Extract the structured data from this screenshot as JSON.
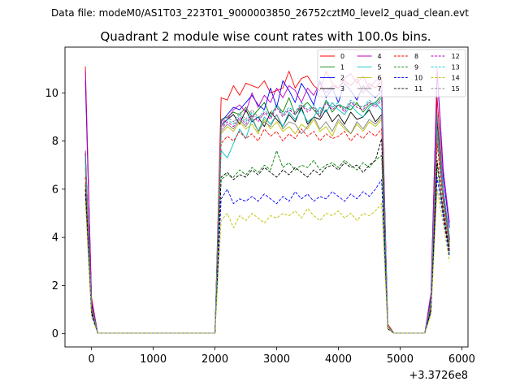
{
  "figure": {
    "suptitle": "Data file: modeM0/AS1T03_223T01_9000003850_26752cztM0_level2_quad_clean.evt"
  },
  "chart_data": {
    "type": "line",
    "title": "Quadrant 2 module wise count rates with 100.0s bins.",
    "xlabel": "",
    "ylabel": "",
    "x_offset_label": "+3.3726e8",
    "xlim": [
      -430,
      6100
    ],
    "ylim": [
      -0.55,
      11.9
    ],
    "xticks": [
      0,
      1000,
      2000,
      3000,
      4000,
      5000,
      6000
    ],
    "xtick_labels": [
      "0",
      "1000",
      "2000",
      "3000",
      "4000",
      "5000",
      "6000"
    ],
    "yticks": [
      0,
      2,
      4,
      6,
      8,
      10
    ],
    "ytick_labels": [
      "0",
      "2",
      "4",
      "6",
      "8",
      "10"
    ],
    "grid": false,
    "legend_placement": "upper-right",
    "legend_columns": 4,
    "x": [
      -100,
      0,
      100,
      200,
      300,
      400,
      500,
      600,
      700,
      800,
      900,
      1000,
      1100,
      1200,
      1300,
      1400,
      1500,
      1600,
      1700,
      1800,
      1900,
      2000,
      2100,
      2200,
      2300,
      2400,
      2500,
      2600,
      2700,
      2800,
      2900,
      3000,
      3100,
      3200,
      3300,
      3400,
      3500,
      3600,
      3700,
      3800,
      3900,
      4000,
      4100,
      4200,
      4300,
      4400,
      4500,
      4600,
      4700,
      4800,
      4900,
      5000,
      5100,
      5200,
      5300,
      5400,
      5500,
      5600,
      5700,
      5800
    ],
    "series": [
      {
        "name": "0",
        "color": "#ff0000",
        "dash": "solid",
        "values": [
          11.1,
          1.5,
          0.02,
          0.02,
          0.02,
          0.02,
          0.02,
          0.02,
          0.02,
          0.02,
          0.02,
          0.02,
          0.02,
          0.02,
          0.02,
          0.02,
          0.02,
          0.02,
          0.02,
          0.02,
          0.02,
          0.02,
          9.8,
          9.7,
          10.3,
          9.9,
          10.4,
          10.3,
          10.2,
          10.5,
          10.0,
          10.1,
          10.2,
          10.9,
          10.2,
          10.6,
          10.7,
          10.3,
          10.1,
          10.9,
          10.4,
          10.2,
          10.5,
          10.3,
          10.6,
          10.0,
          10.4,
          10.2,
          10.5,
          0.4,
          0.02,
          0.02,
          0.02,
          0.02,
          0.02,
          0.02,
          1.5,
          9.8,
          6.0,
          4.0
        ]
      },
      {
        "name": "1",
        "color": "#008000",
        "dash": "solid",
        "values": [
          7.2,
          1.4,
          0.02,
          0.02,
          0.02,
          0.02,
          0.02,
          0.02,
          0.02,
          0.02,
          0.02,
          0.02,
          0.02,
          0.02,
          0.02,
          0.02,
          0.02,
          0.02,
          0.02,
          0.02,
          0.02,
          0.02,
          8.9,
          9.0,
          9.2,
          9.1,
          9.4,
          9.0,
          9.3,
          9.6,
          9.0,
          9.5,
          9.2,
          9.8,
          9.1,
          9.4,
          9.6,
          9.3,
          9.0,
          9.7,
          9.2,
          9.5,
          9.4,
          9.3,
          9.6,
          9.2,
          9.5,
          9.6,
          9.9,
          0.3,
          0.02,
          0.02,
          0.02,
          0.02,
          0.02,
          0.02,
          1.4,
          8.8,
          5.8,
          3.8
        ]
      },
      {
        "name": "2",
        "color": "#0000ff",
        "dash": "solid",
        "values": [
          10.5,
          1.3,
          0.02,
          0.02,
          0.02,
          0.02,
          0.02,
          0.02,
          0.02,
          0.02,
          0.02,
          0.02,
          0.02,
          0.02,
          0.02,
          0.02,
          0.02,
          0.02,
          0.02,
          0.02,
          0.02,
          0.02,
          8.8,
          9.1,
          9.4,
          9.3,
          9.6,
          9.9,
          9.5,
          9.3,
          10.2,
          9.4,
          10.5,
          10.1,
          9.6,
          10.4,
          10.0,
          9.5,
          10.5,
          9.8,
          10.2,
          9.6,
          10.4,
          10.1,
          9.7,
          10.3,
          10.0,
          9.8,
          10.1,
          0.3,
          0.02,
          0.02,
          0.02,
          0.02,
          0.02,
          0.02,
          1.6,
          10.9,
          6.5,
          4.4
        ]
      },
      {
        "name": "3",
        "color": "#000000",
        "dash": "solid",
        "values": [
          7.5,
          1.2,
          0.02,
          0.02,
          0.02,
          0.02,
          0.02,
          0.02,
          0.02,
          0.02,
          0.02,
          0.02,
          0.02,
          0.02,
          0.02,
          0.02,
          0.02,
          0.02,
          0.02,
          0.02,
          0.02,
          0.02,
          8.6,
          8.9,
          9.1,
          8.7,
          9.3,
          8.8,
          9.0,
          8.6,
          9.2,
          8.9,
          8.6,
          9.1,
          8.8,
          9.4,
          8.7,
          9.0,
          8.9,
          9.3,
          8.8,
          9.1,
          8.7,
          9.2,
          8.9,
          9.0,
          9.3,
          8.8,
          9.1,
          0.3,
          0.02,
          0.02,
          0.02,
          0.02,
          0.02,
          0.02,
          1.3,
          8.9,
          5.9,
          3.9
        ]
      },
      {
        "name": "4",
        "color": "#bf00bf",
        "dash": "solid",
        "values": [
          10.9,
          1.4,
          0.02,
          0.02,
          0.02,
          0.02,
          0.02,
          0.02,
          0.02,
          0.02,
          0.02,
          0.02,
          0.02,
          0.02,
          0.02,
          0.02,
          0.02,
          0.02,
          0.02,
          0.02,
          0.02,
          0.02,
          8.7,
          8.9,
          9.3,
          9.5,
          9.2,
          10.0,
          9.4,
          9.9,
          9.6,
          10.2,
          9.8,
          10.3,
          10.1,
          9.6,
          10.2,
          9.9,
          10.4,
          10.0,
          10.3,
          10.2,
          10.6,
          10.8,
          10.4,
          10.7,
          10.2,
          10.5,
          10.6,
          0.3,
          0.02,
          0.02,
          0.02,
          0.02,
          0.02,
          0.02,
          1.7,
          11.0,
          6.8,
          4.6
        ]
      },
      {
        "name": "5",
        "color": "#00bfbf",
        "dash": "solid",
        "values": [
          7.0,
          1.1,
          0.02,
          0.02,
          0.02,
          0.02,
          0.02,
          0.02,
          0.02,
          0.02,
          0.02,
          0.02,
          0.02,
          0.02,
          0.02,
          0.02,
          0.02,
          0.02,
          0.02,
          0.02,
          0.02,
          0.02,
          7.6,
          7.3,
          7.9,
          8.5,
          8.1,
          8.9,
          8.4,
          9.0,
          8.7,
          9.1,
          8.6,
          9.2,
          8.9,
          9.3,
          8.8,
          9.0,
          9.4,
          9.2,
          9.6,
          9.3,
          9.1,
          9.5,
          9.2,
          9.0,
          9.4,
          9.6,
          9.3,
          0.3,
          0.02,
          0.02,
          0.02,
          0.02,
          0.02,
          0.02,
          1.2,
          8.5,
          5.6,
          3.7
        ]
      },
      {
        "name": "6",
        "color": "#bfbf00",
        "dash": "solid",
        "values": [
          6.8,
          1.0,
          0.02,
          0.02,
          0.02,
          0.02,
          0.02,
          0.02,
          0.02,
          0.02,
          0.02,
          0.02,
          0.02,
          0.02,
          0.02,
          0.02,
          0.02,
          0.02,
          0.02,
          0.02,
          0.02,
          0.02,
          8.3,
          8.6,
          8.4,
          8.8,
          8.5,
          8.7,
          8.3,
          8.9,
          8.5,
          8.8,
          8.4,
          8.6,
          8.3,
          8.7,
          8.5,
          8.9,
          8.4,
          8.6,
          8.2,
          8.8,
          8.5,
          8.3,
          8.7,
          8.4,
          8.8,
          8.6,
          8.9,
          0.3,
          0.02,
          0.02,
          0.02,
          0.02,
          0.02,
          0.02,
          1.2,
          8.2,
          5.5,
          3.6
        ]
      },
      {
        "name": "7",
        "color": "#808080",
        "dash": "solid",
        "values": [
          6.9,
          1.0,
          0.02,
          0.02,
          0.02,
          0.02,
          0.02,
          0.02,
          0.02,
          0.02,
          0.02,
          0.02,
          0.02,
          0.02,
          0.02,
          0.02,
          0.02,
          0.02,
          0.02,
          0.02,
          0.02,
          0.02,
          8.4,
          8.7,
          8.5,
          8.9,
          8.6,
          9.0,
          8.4,
          8.8,
          8.6,
          9.1,
          8.5,
          8.8,
          8.7,
          8.3,
          8.6,
          9.0,
          8.5,
          8.8,
          8.4,
          8.9,
          8.6,
          8.3,
          8.8,
          8.5,
          8.9,
          8.7,
          9.0,
          0.3,
          0.02,
          0.02,
          0.02,
          0.02,
          0.02,
          0.02,
          1.2,
          8.3,
          5.5,
          3.6
        ]
      },
      {
        "name": "8",
        "color": "#ff0000",
        "dash": "dashed",
        "values": [
          6.5,
          1.0,
          0.02,
          0.02,
          0.02,
          0.02,
          0.02,
          0.02,
          0.02,
          0.02,
          0.02,
          0.02,
          0.02,
          0.02,
          0.02,
          0.02,
          0.02,
          0.02,
          0.02,
          0.02,
          0.02,
          0.02,
          7.9,
          8.2,
          8.0,
          8.4,
          8.1,
          8.3,
          8.0,
          8.5,
          8.2,
          8.4,
          8.0,
          8.3,
          8.1,
          8.5,
          8.2,
          8.4,
          8.0,
          8.3,
          8.1,
          8.2,
          8.4,
          8.0,
          8.3,
          8.1,
          8.4,
          8.2,
          8.5,
          0.3,
          0.02,
          0.02,
          0.02,
          0.02,
          0.02,
          0.02,
          1.1,
          7.9,
          5.3,
          3.5
        ]
      },
      {
        "name": "9",
        "color": "#008000",
        "dash": "dashed",
        "values": [
          6.2,
          0.9,
          0.02,
          0.02,
          0.02,
          0.02,
          0.02,
          0.02,
          0.02,
          0.02,
          0.02,
          0.02,
          0.02,
          0.02,
          0.02,
          0.02,
          0.02,
          0.02,
          0.02,
          0.02,
          0.02,
          0.02,
          6.4,
          6.6,
          6.5,
          6.8,
          6.6,
          6.9,
          6.7,
          7.0,
          6.8,
          7.6,
          6.9,
          7.1,
          6.8,
          7.0,
          6.9,
          7.2,
          6.8,
          7.0,
          7.1,
          6.9,
          7.2,
          7.0,
          6.8,
          7.1,
          6.9,
          7.2,
          7.4,
          0.2,
          0.02,
          0.02,
          0.02,
          0.02,
          0.02,
          0.02,
          1.0,
          7.0,
          5.0,
          3.3
        ]
      },
      {
        "name": "10",
        "color": "#0000ff",
        "dash": "dashed",
        "values": [
          5.8,
          0.8,
          0.02,
          0.02,
          0.02,
          0.02,
          0.02,
          0.02,
          0.02,
          0.02,
          0.02,
          0.02,
          0.02,
          0.02,
          0.02,
          0.02,
          0.02,
          0.02,
          0.02,
          0.02,
          0.02,
          0.02,
          5.6,
          6.0,
          5.4,
          5.6,
          5.5,
          5.7,
          5.5,
          5.8,
          5.6,
          5.4,
          5.7,
          5.5,
          5.9,
          5.6,
          5.8,
          5.5,
          5.7,
          5.6,
          5.9,
          5.7,
          5.5,
          5.8,
          5.6,
          5.9,
          5.7,
          6.0,
          6.4,
          0.2,
          0.02,
          0.02,
          0.02,
          0.02,
          0.02,
          0.02,
          0.9,
          6.5,
          4.8,
          3.2
        ]
      },
      {
        "name": "11",
        "color": "#000000",
        "dash": "dashed",
        "values": [
          6.0,
          0.9,
          0.02,
          0.02,
          0.02,
          0.02,
          0.02,
          0.02,
          0.02,
          0.02,
          0.02,
          0.02,
          0.02,
          0.02,
          0.02,
          0.02,
          0.02,
          0.02,
          0.02,
          0.02,
          0.02,
          0.02,
          6.5,
          6.7,
          6.4,
          6.6,
          6.5,
          6.8,
          6.6,
          6.9,
          6.7,
          6.5,
          6.8,
          6.6,
          6.9,
          6.7,
          6.5,
          6.8,
          6.6,
          6.9,
          7.0,
          6.8,
          7.1,
          6.9,
          7.0,
          6.7,
          7.0,
          7.2,
          8.1,
          0.2,
          0.02,
          0.02,
          0.02,
          0.02,
          0.02,
          0.02,
          1.0,
          7.2,
          5.0,
          3.4
        ]
      },
      {
        "name": "12",
        "color": "#bf00bf",
        "dash": "dashed",
        "values": [
          7.6,
          1.1,
          0.02,
          0.02,
          0.02,
          0.02,
          0.02,
          0.02,
          0.02,
          0.02,
          0.02,
          0.02,
          0.02,
          0.02,
          0.02,
          0.02,
          0.02,
          0.02,
          0.02,
          0.02,
          0.02,
          0.02,
          8.5,
          8.8,
          8.6,
          9.0,
          8.7,
          9.1,
          8.8,
          9.2,
          8.9,
          9.4,
          9.0,
          9.3,
          9.1,
          9.5,
          9.2,
          9.4,
          9.0,
          9.6,
          9.3,
          9.5,
          9.2,
          9.6,
          9.4,
          9.3,
          9.6,
          9.4,
          9.7,
          0.3,
          0.02,
          0.02,
          0.02,
          0.02,
          0.02,
          0.02,
          1.3,
          9.0,
          5.9,
          3.9
        ]
      },
      {
        "name": "13",
        "color": "#00bfbf",
        "dash": "dashed",
        "values": [
          7.3,
          1.1,
          0.02,
          0.02,
          0.02,
          0.02,
          0.02,
          0.02,
          0.02,
          0.02,
          0.02,
          0.02,
          0.02,
          0.02,
          0.02,
          0.02,
          0.02,
          0.02,
          0.02,
          0.02,
          0.02,
          0.02,
          8.6,
          8.9,
          8.7,
          9.1,
          8.8,
          9.2,
          8.9,
          9.3,
          9.0,
          9.5,
          9.1,
          9.4,
          9.2,
          9.6,
          9.3,
          9.5,
          9.1,
          9.7,
          9.4,
          9.6,
          9.3,
          9.7,
          9.5,
          9.4,
          9.7,
          9.5,
          9.8,
          0.3,
          0.02,
          0.02,
          0.02,
          0.02,
          0.02,
          0.02,
          1.3,
          9.1,
          6.0,
          4.0
        ]
      },
      {
        "name": "14",
        "color": "#bfbf00",
        "dash": "dashed",
        "values": [
          5.5,
          0.7,
          0.02,
          0.02,
          0.02,
          0.02,
          0.02,
          0.02,
          0.02,
          0.02,
          0.02,
          0.02,
          0.02,
          0.02,
          0.02,
          0.02,
          0.02,
          0.02,
          0.02,
          0.02,
          0.02,
          0.02,
          4.7,
          5.0,
          4.4,
          4.9,
          4.7,
          5.0,
          4.8,
          4.6,
          4.9,
          4.8,
          5.0,
          4.9,
          5.1,
          4.8,
          5.2,
          4.9,
          4.7,
          5.0,
          4.9,
          5.1,
          4.8,
          5.0,
          4.7,
          5.0,
          4.9,
          5.1,
          5.4,
          0.2,
          0.02,
          0.02,
          0.02,
          0.02,
          0.02,
          0.02,
          0.8,
          6.0,
          4.5,
          3.0
        ]
      },
      {
        "name": "15",
        "color": "#808080",
        "dash": "dashed",
        "values": [
          7.4,
          1.1,
          0.02,
          0.02,
          0.02,
          0.02,
          0.02,
          0.02,
          0.02,
          0.02,
          0.02,
          0.02,
          0.02,
          0.02,
          0.02,
          0.02,
          0.02,
          0.02,
          0.02,
          0.02,
          0.02,
          0.02,
          8.7,
          9.0,
          8.8,
          9.2,
          8.9,
          9.3,
          9.0,
          9.1,
          9.2,
          9.4,
          9.1,
          9.3,
          9.2,
          9.5,
          9.3,
          9.4,
          9.2,
          9.6,
          9.4,
          9.5,
          9.3,
          9.6,
          9.5,
          9.4,
          9.6,
          9.5,
          9.8,
          0.3,
          0.02,
          0.02,
          0.02,
          0.02,
          0.02,
          0.02,
          1.3,
          9.2,
          6.0,
          4.0
        ]
      }
    ]
  }
}
